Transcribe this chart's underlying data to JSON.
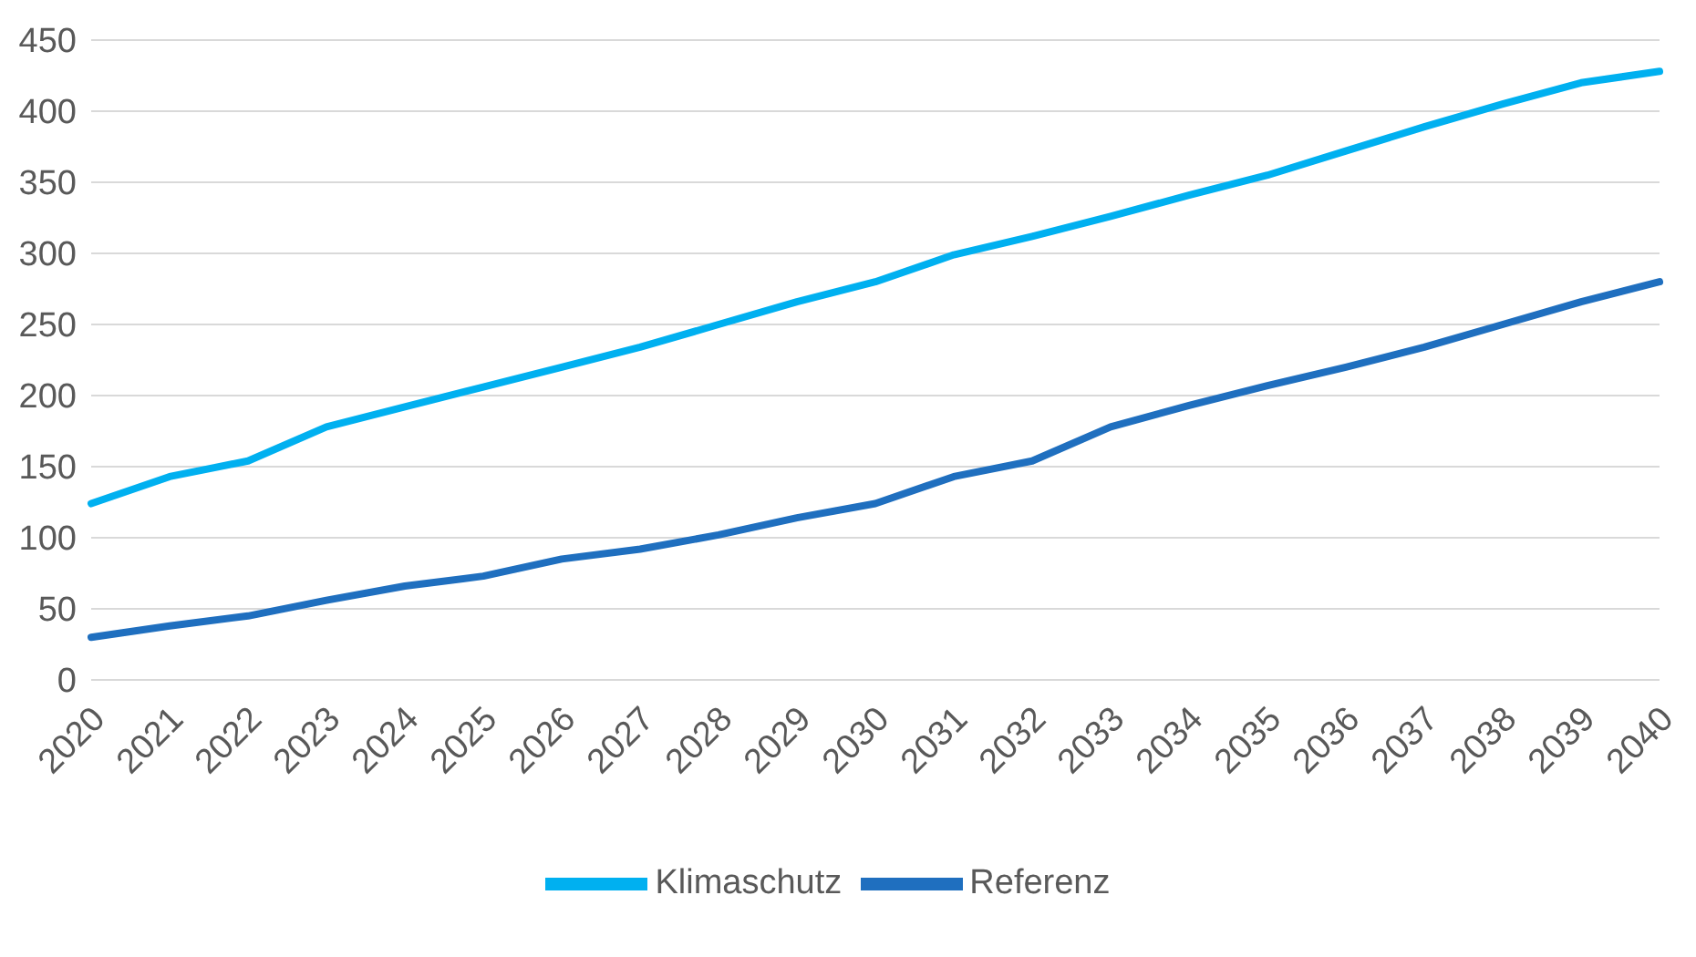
{
  "chart_data": {
    "type": "line",
    "categories": [
      "2020",
      "2021",
      "2022",
      "2023",
      "2024",
      "2025",
      "2026",
      "2027",
      "2028",
      "2029",
      "2030",
      "2031",
      "2032",
      "2033",
      "2034",
      "2035",
      "2036",
      "2037",
      "2038",
      "2039",
      "2040"
    ],
    "series": [
      {
        "name": "Referenz",
        "color": "#1f6fbf",
        "values": [
          30,
          38,
          45,
          56,
          66,
          73,
          85,
          92,
          102,
          114,
          124,
          143,
          154,
          178,
          193,
          207,
          220,
          234,
          250,
          266,
          280
        ]
      },
      {
        "name": "Klimaschutz",
        "color": "#00b0f0",
        "values": [
          124,
          143,
          154,
          178,
          192,
          206,
          220,
          234,
          250,
          266,
          280,
          299,
          312,
          326,
          341,
          355,
          372,
          389,
          405,
          420,
          428
        ]
      }
    ],
    "ylim": [
      0,
      450
    ],
    "yticks": [
      0,
      50,
      100,
      150,
      200,
      250,
      300,
      350,
      400,
      450
    ],
    "grid": "y",
    "legend": "bottom",
    "marker": "none",
    "line_style": "solid"
  }
}
